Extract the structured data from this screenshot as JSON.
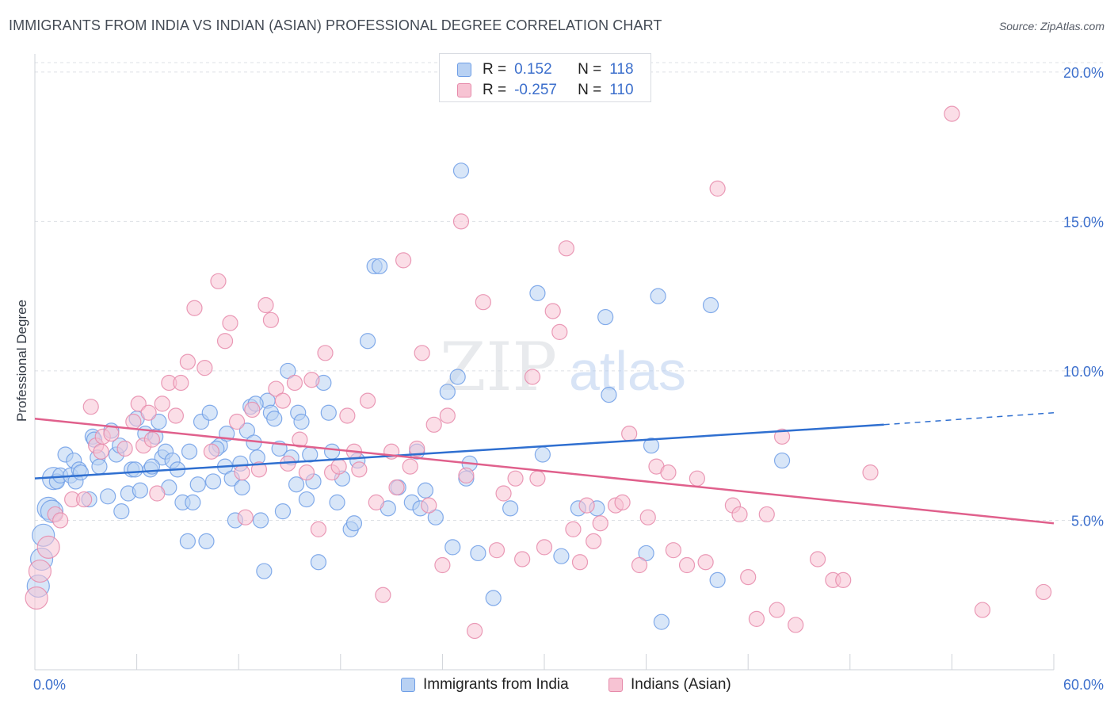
{
  "header": {
    "title": "IMMIGRANTS FROM INDIA VS INDIAN (ASIAN) PROFESSIONAL DEGREE CORRELATION CHART",
    "source": "Source: ZipAtlas.com"
  },
  "watermark": {
    "zip": "ZIP",
    "atlas": "atlas"
  },
  "legend": {
    "series": [
      {
        "r_label": "R =",
        "r_value": "0.152",
        "n_label": "N =",
        "n_value": "118",
        "color": "#6e9ee6",
        "fill": "#b8d1f3"
      },
      {
        "r_label": "R =",
        "r_value": "-0.257",
        "n_label": "N =",
        "n_value": "110",
        "color": "#e68aaa",
        "fill": "#f7c3d3"
      }
    ]
  },
  "bottom_legend": {
    "items": [
      {
        "label": "Immigrants from India",
        "color": "#6e9ee6",
        "fill": "#b8d1f3"
      },
      {
        "label": "Indians (Asian)",
        "color": "#e68aaa",
        "fill": "#f7c3d3"
      }
    ]
  },
  "chart_data": {
    "type": "scatter",
    "title": "IMMIGRANTS FROM INDIA VS INDIAN (ASIAN) PROFESSIONAL DEGREE CORRELATION CHART",
    "xlabel": "",
    "ylabel": "Professional Degree",
    "xlim": [
      0,
      60
    ],
    "ylim": [
      0,
      20.5
    ],
    "x_tick_labels": [
      "0.0%",
      "60.0%"
    ],
    "y_ticks": [
      5,
      10,
      15,
      20
    ],
    "y_tick_labels": [
      "5.0%",
      "10.0%",
      "15.0%",
      "20.0%"
    ],
    "grid": true,
    "legend_position": "top-center",
    "series": [
      {
        "name": "Immigrants from India",
        "color": "#6e9ee6",
        "fill": "#b8d1f3",
        "line_color": "#2f6fd0",
        "trend": {
          "x_start": 0,
          "y_start": 6.4,
          "x_end": 50,
          "y_end": 8.2,
          "dash_x_end": 60,
          "dash_y_end": 8.6
        },
        "points": [
          [
            0.2,
            2.8
          ],
          [
            0.4,
            3.7
          ],
          [
            0.5,
            4.5
          ],
          [
            0.8,
            5.4
          ],
          [
            1.0,
            5.3
          ],
          [
            1.1,
            6.4
          ],
          [
            1.3,
            6.3
          ],
          [
            1.5,
            6.5
          ],
          [
            1.8,
            7.2
          ],
          [
            2.1,
            6.5
          ],
          [
            2.3,
            7.0
          ],
          [
            2.4,
            6.3
          ],
          [
            2.6,
            6.7
          ],
          [
            2.7,
            6.6
          ],
          [
            3.2,
            5.7
          ],
          [
            3.4,
            7.8
          ],
          [
            3.5,
            7.7
          ],
          [
            3.7,
            7.1
          ],
          [
            3.8,
            6.8
          ],
          [
            4.3,
            5.8
          ],
          [
            4.5,
            8.0
          ],
          [
            4.8,
            7.2
          ],
          [
            5.0,
            7.5
          ],
          [
            5.1,
            5.3
          ],
          [
            5.5,
            5.9
          ],
          [
            5.7,
            6.7
          ],
          [
            5.9,
            6.7
          ],
          [
            6.0,
            8.4
          ],
          [
            6.2,
            6.0
          ],
          [
            6.5,
            7.9
          ],
          [
            6.8,
            6.7
          ],
          [
            7.1,
            7.8
          ],
          [
            7.3,
            8.3
          ],
          [
            7.5,
            7.1
          ],
          [
            7.7,
            7.3
          ],
          [
            7.9,
            6.1
          ],
          [
            8.1,
            7.0
          ],
          [
            8.4,
            6.7
          ],
          [
            8.7,
            5.6
          ],
          [
            9.0,
            4.3
          ],
          [
            9.1,
            7.3
          ],
          [
            9.3,
            5.6
          ],
          [
            9.6,
            6.2
          ],
          [
            9.8,
            8.3
          ],
          [
            10.1,
            4.3
          ],
          [
            10.3,
            8.6
          ],
          [
            10.5,
            6.3
          ],
          [
            10.9,
            7.5
          ],
          [
            11.2,
            6.8
          ],
          [
            11.3,
            7.9
          ],
          [
            11.6,
            6.4
          ],
          [
            11.8,
            5.0
          ],
          [
            12.1,
            6.9
          ],
          [
            12.2,
            6.1
          ],
          [
            12.5,
            8.0
          ],
          [
            12.7,
            8.8
          ],
          [
            12.9,
            7.6
          ],
          [
            13.1,
            7.1
          ],
          [
            13.3,
            5.0
          ],
          [
            13.5,
            3.3
          ],
          [
            13.7,
            9.0
          ],
          [
            13.9,
            8.6
          ],
          [
            14.1,
            8.4
          ],
          [
            14.4,
            7.4
          ],
          [
            14.6,
            5.3
          ],
          [
            14.9,
            10.0
          ],
          [
            15.1,
            7.1
          ],
          [
            15.4,
            6.2
          ],
          [
            15.5,
            8.6
          ],
          [
            15.7,
            8.3
          ],
          [
            16.0,
            5.7
          ],
          [
            16.2,
            7.2
          ],
          [
            16.4,
            6.3
          ],
          [
            16.7,
            3.6
          ],
          [
            17.0,
            9.6
          ],
          [
            17.3,
            8.6
          ],
          [
            17.5,
            7.3
          ],
          [
            17.8,
            5.6
          ],
          [
            18.1,
            6.4
          ],
          [
            18.6,
            4.7
          ],
          [
            18.8,
            4.9
          ],
          [
            19.6,
            11.0
          ],
          [
            20.0,
            13.5
          ],
          [
            20.3,
            13.5
          ],
          [
            20.8,
            5.4
          ],
          [
            21.4,
            6.1
          ],
          [
            22.2,
            5.6
          ],
          [
            22.5,
            7.3
          ],
          [
            22.7,
            5.4
          ],
          [
            23.0,
            6.0
          ],
          [
            23.6,
            5.1
          ],
          [
            24.3,
            9.3
          ],
          [
            24.6,
            4.1
          ],
          [
            24.9,
            9.8
          ],
          [
            25.1,
            16.7
          ],
          [
            25.4,
            6.4
          ],
          [
            25.6,
            6.9
          ],
          [
            26.1,
            3.9
          ],
          [
            27.0,
            2.4
          ],
          [
            28.0,
            5.4
          ],
          [
            29.6,
            12.6
          ],
          [
            29.9,
            7.2
          ],
          [
            31.0,
            3.8
          ],
          [
            32.0,
            5.4
          ],
          [
            33.1,
            5.4
          ],
          [
            33.6,
            11.8
          ],
          [
            33.8,
            9.2
          ],
          [
            36.0,
            3.9
          ],
          [
            36.3,
            7.5
          ],
          [
            36.7,
            12.5
          ],
          [
            36.9,
            1.6
          ],
          [
            39.8,
            12.2
          ],
          [
            40.2,
            3.0
          ],
          [
            44.0,
            7.0
          ],
          [
            6.9,
            6.8
          ],
          [
            10.7,
            7.4
          ],
          [
            13.0,
            8.9
          ],
          [
            19.0,
            7.0
          ]
        ]
      },
      {
        "name": "Indians (Asian)",
        "color": "#e68aaa",
        "fill": "#f7c3d3",
        "line_color": "#e0608c",
        "trend": {
          "x_start": 0,
          "y_start": 8.4,
          "x_end": 60,
          "y_end": 4.9
        },
        "points": [
          [
            0.1,
            2.4
          ],
          [
            0.3,
            3.3
          ],
          [
            0.8,
            4.1
          ],
          [
            1.2,
            5.2
          ],
          [
            1.5,
            5.0
          ],
          [
            2.2,
            5.7
          ],
          [
            2.9,
            5.7
          ],
          [
            3.3,
            8.8
          ],
          [
            3.6,
            7.5
          ],
          [
            3.9,
            7.3
          ],
          [
            4.0,
            7.8
          ],
          [
            4.5,
            7.9
          ],
          [
            5.3,
            7.4
          ],
          [
            5.8,
            8.3
          ],
          [
            6.1,
            8.9
          ],
          [
            6.4,
            7.5
          ],
          [
            6.7,
            8.6
          ],
          [
            6.9,
            7.7
          ],
          [
            7.2,
            5.9
          ],
          [
            7.5,
            8.9
          ],
          [
            7.9,
            9.6
          ],
          [
            8.3,
            8.5
          ],
          [
            8.6,
            9.6
          ],
          [
            9.0,
            10.3
          ],
          [
            9.4,
            12.1
          ],
          [
            10.0,
            10.1
          ],
          [
            10.4,
            7.3
          ],
          [
            10.8,
            13.0
          ],
          [
            11.2,
            11.0
          ],
          [
            11.5,
            11.6
          ],
          [
            11.9,
            8.3
          ],
          [
            12.2,
            6.6
          ],
          [
            12.4,
            5.1
          ],
          [
            12.8,
            8.7
          ],
          [
            13.2,
            6.7
          ],
          [
            13.6,
            12.2
          ],
          [
            13.9,
            11.7
          ],
          [
            14.2,
            9.4
          ],
          [
            14.6,
            9.0
          ],
          [
            14.9,
            6.9
          ],
          [
            15.3,
            9.6
          ],
          [
            15.6,
            7.7
          ],
          [
            16.0,
            6.6
          ],
          [
            16.3,
            9.7
          ],
          [
            16.7,
            4.7
          ],
          [
            17.1,
            10.6
          ],
          [
            17.5,
            6.6
          ],
          [
            17.9,
            6.8
          ],
          [
            18.4,
            8.5
          ],
          [
            18.8,
            7.3
          ],
          [
            19.1,
            6.7
          ],
          [
            19.6,
            9.0
          ],
          [
            20.1,
            5.6
          ],
          [
            20.5,
            2.5
          ],
          [
            21.0,
            7.3
          ],
          [
            21.3,
            6.1
          ],
          [
            21.7,
            13.7
          ],
          [
            22.1,
            6.8
          ],
          [
            22.5,
            7.4
          ],
          [
            22.8,
            10.6
          ],
          [
            23.2,
            5.5
          ],
          [
            23.5,
            8.2
          ],
          [
            24.0,
            3.5
          ],
          [
            24.3,
            8.5
          ],
          [
            25.1,
            15.0
          ],
          [
            25.4,
            6.5
          ],
          [
            25.9,
            1.3
          ],
          [
            26.4,
            12.3
          ],
          [
            27.2,
            4.0
          ],
          [
            27.6,
            5.9
          ],
          [
            28.3,
            6.4
          ],
          [
            28.7,
            3.7
          ],
          [
            29.3,
            9.8
          ],
          [
            29.6,
            6.4
          ],
          [
            30.0,
            4.1
          ],
          [
            30.5,
            12.0
          ],
          [
            30.9,
            11.3
          ],
          [
            31.3,
            14.1
          ],
          [
            31.7,
            4.7
          ],
          [
            32.1,
            3.6
          ],
          [
            32.5,
            5.5
          ],
          [
            32.9,
            4.3
          ],
          [
            33.3,
            4.9
          ],
          [
            34.2,
            5.5
          ],
          [
            34.6,
            5.6
          ],
          [
            35.0,
            7.9
          ],
          [
            35.6,
            3.5
          ],
          [
            36.1,
            5.1
          ],
          [
            36.6,
            6.8
          ],
          [
            37.3,
            6.6
          ],
          [
            37.6,
            4.0
          ],
          [
            38.4,
            3.5
          ],
          [
            39.0,
            6.4
          ],
          [
            39.5,
            3.6
          ],
          [
            40.2,
            16.1
          ],
          [
            41.1,
            5.5
          ],
          [
            41.5,
            5.2
          ],
          [
            42.0,
            3.1
          ],
          [
            42.5,
            1.7
          ],
          [
            43.1,
            5.2
          ],
          [
            43.7,
            2.0
          ],
          [
            44.0,
            7.8
          ],
          [
            44.8,
            1.5
          ],
          [
            46.1,
            3.7
          ],
          [
            47.0,
            3.0
          ],
          [
            47.6,
            3.0
          ],
          [
            49.2,
            6.6
          ],
          [
            54.0,
            18.6
          ],
          [
            55.8,
            2.0
          ],
          [
            59.4,
            2.6
          ]
        ]
      }
    ]
  }
}
